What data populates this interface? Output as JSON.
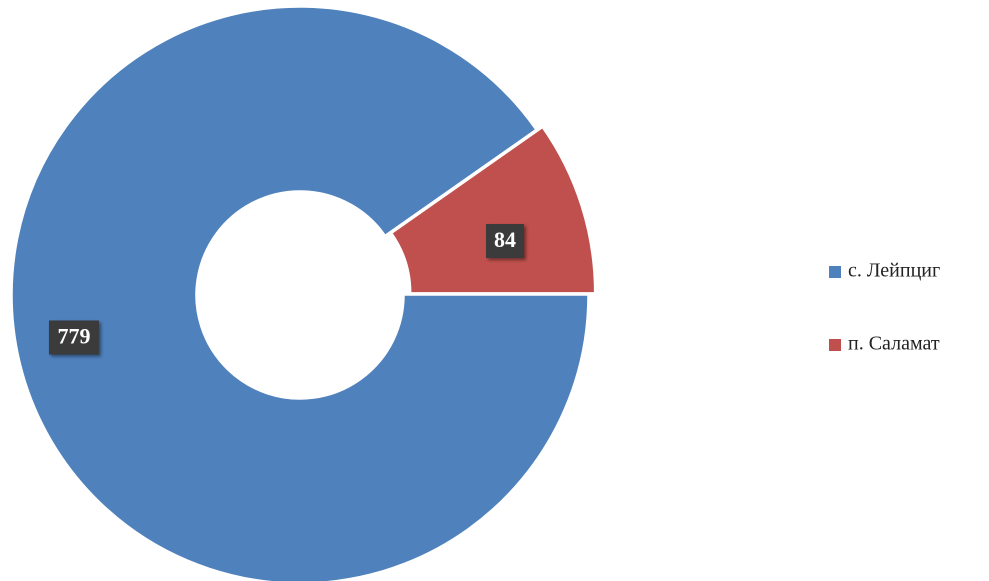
{
  "chart_data": {
    "type": "donut",
    "categories": [
      "с. Лейпциг",
      "п. Саламат"
    ],
    "values": [
      779,
      84
    ],
    "colors": [
      "#4f81bd",
      "#c0504d"
    ],
    "legend": "right"
  }
}
